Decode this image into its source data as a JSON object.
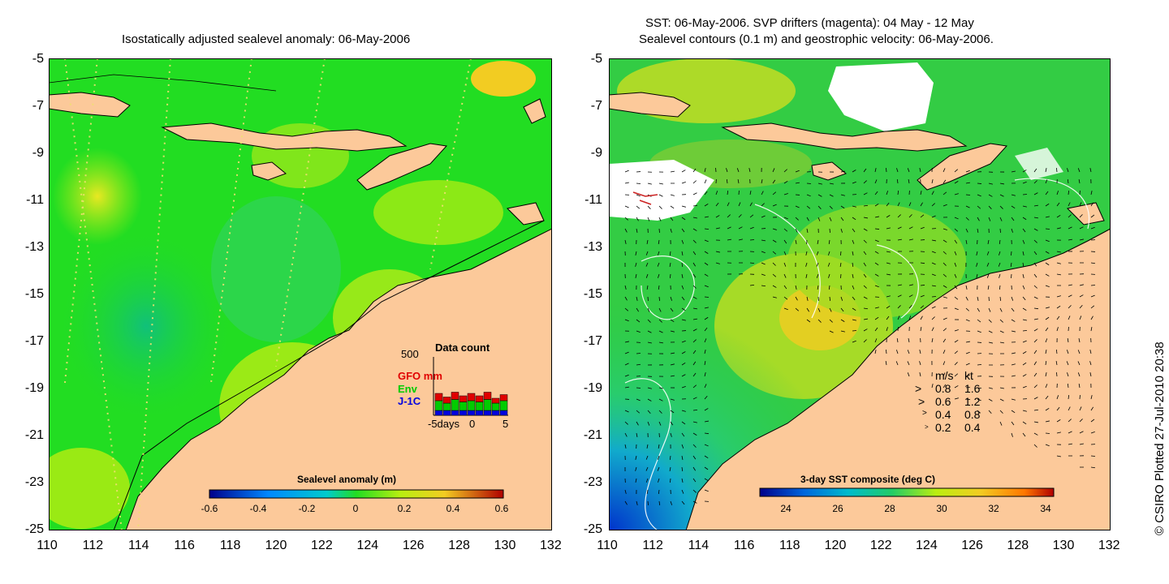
{
  "left_panel": {
    "title": "Isostatically adjusted sealevel anomaly: 06-May-2006",
    "colorbar": {
      "title": "Sealevel anomaly (m)",
      "ticks": [
        "-0.6",
        "-0.4",
        "-0.2",
        "0",
        "0.2",
        "0.4",
        "0.6"
      ]
    },
    "data_count": {
      "title": "Data count",
      "y_tick": "500",
      "x_ticks": [
        "-5days",
        "0",
        "5"
      ],
      "legend": [
        {
          "label": "GFO mm",
          "color": "#e00000"
        },
        {
          "label": "Env",
          "color": "#00cc00"
        },
        {
          "label": "J-1C",
          "color": "#0000e0"
        }
      ],
      "bars": [
        {
          "gfo": 0.3,
          "env": 0.4,
          "j1c": 0.2
        },
        {
          "gfo": 0.25,
          "env": 0.3,
          "j1c": 0.2
        },
        {
          "gfo": 0.3,
          "env": 0.45,
          "j1c": 0.2
        },
        {
          "gfo": 0.25,
          "env": 0.35,
          "j1c": 0.2
        },
        {
          "gfo": 0.3,
          "env": 0.4,
          "j1c": 0.2
        },
        {
          "gfo": 0.25,
          "env": 0.35,
          "j1c": 0.2
        },
        {
          "gfo": 0.3,
          "env": 0.45,
          "j1c": 0.2
        },
        {
          "gfo": 0.2,
          "env": 0.3,
          "j1c": 0.2
        },
        {
          "gfo": 0.25,
          "env": 0.4,
          "j1c": 0.2
        }
      ]
    }
  },
  "right_panel": {
    "title_line1": "SST: 06-May-2006. SVP drifters (magenta): 04 May - 12 May",
    "title_line2": "Sealevel contours (0.1 m) and geostrophic velocity: 06-May-2006.",
    "colorbar": {
      "title": "3-day SST composite (deg C)",
      "ticks": [
        "24",
        "26",
        "28",
        "30",
        "32",
        "34"
      ]
    },
    "velocity_legend": {
      "header_ms": "m/s",
      "header_kt": "kt",
      "rows": [
        {
          "ms": "0.8",
          "kt": "1.6"
        },
        {
          "ms": "0.6",
          "kt": "1.2"
        },
        {
          "ms": "0.4",
          "kt": "0.8"
        },
        {
          "ms": "0.2",
          "kt": "0.4"
        }
      ]
    }
  },
  "axes": {
    "lat_labels": [
      "-5",
      "-7",
      "-9",
      "-11",
      "-13",
      "-15",
      "-17",
      "-19",
      "-21",
      "-23",
      "-25"
    ],
    "lon_labels": [
      "110",
      "112",
      "114",
      "116",
      "118",
      "120",
      "122",
      "124",
      "126",
      "128",
      "130",
      "132"
    ]
  },
  "copyright": "© CSIRO Plotted 27-Jul-2010 20:38",
  "colors": {
    "land": "#fcc99a",
    "sea_green": "#22dd22",
    "sea_yellow": "#bbee11",
    "sea_orange": "#eecc22",
    "sea_cyan": "#11bb99",
    "sst_blue": "#0033cc"
  }
}
